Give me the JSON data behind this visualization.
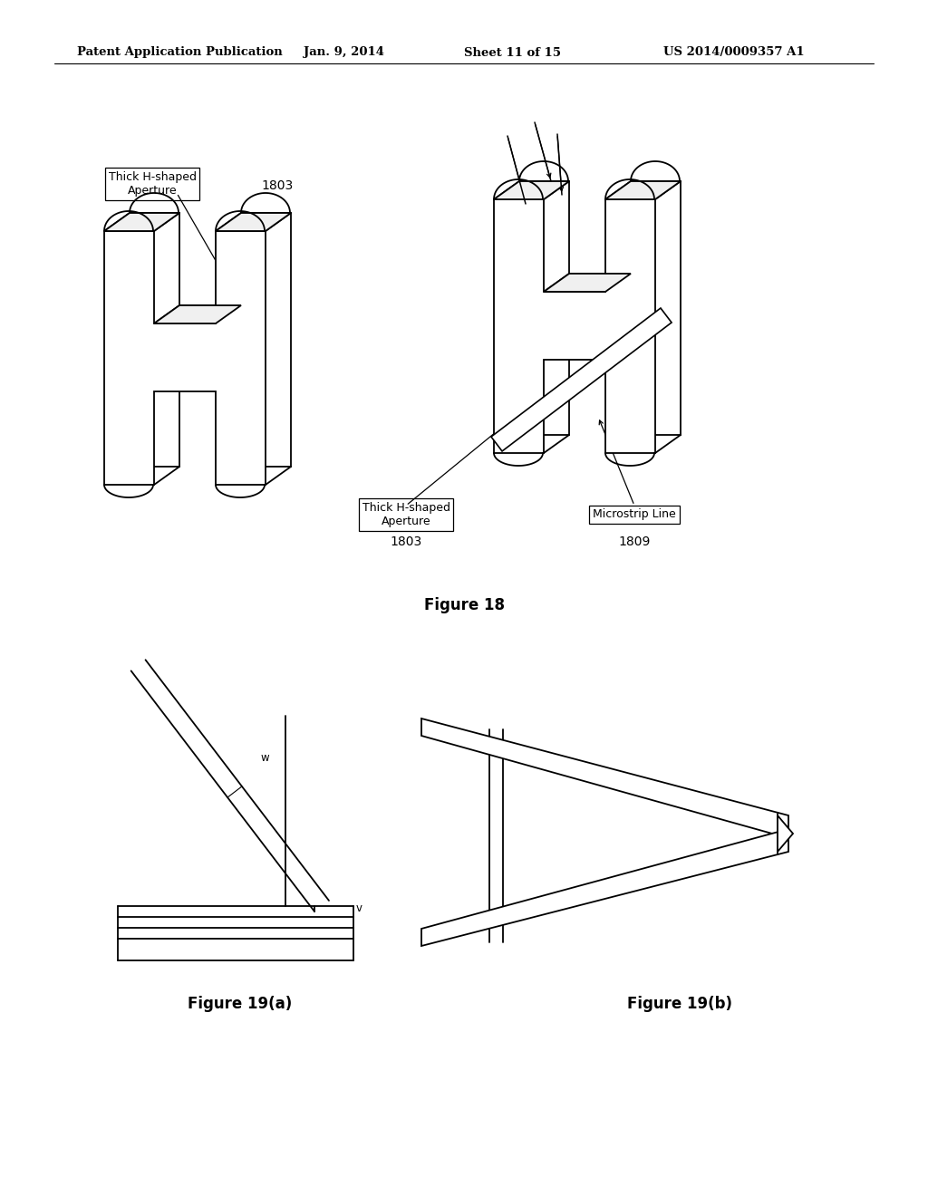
{
  "bg_color": "#ffffff",
  "header_text": "Patent Application Publication",
  "header_date": "Jan. 9, 2014",
  "header_sheet": "Sheet 11 of 15",
  "header_patent": "US 2014/0009357 A1",
  "fig18_title": "Figure 18",
  "fig19a_title": "Figure 19(a)",
  "fig19b_title": "Figure 19(b)",
  "label_thick_h_left": "Thick H-shaped\nAperture",
  "label_1803_left_num": "1803",
  "label_thick_h_right": "Thick H-shaped\nAperture",
  "label_1803_right_num": "1803",
  "label_microstrip": "Microstrip Line",
  "label_1809_num": "1809",
  "label_w": "w",
  "label_v": "v"
}
